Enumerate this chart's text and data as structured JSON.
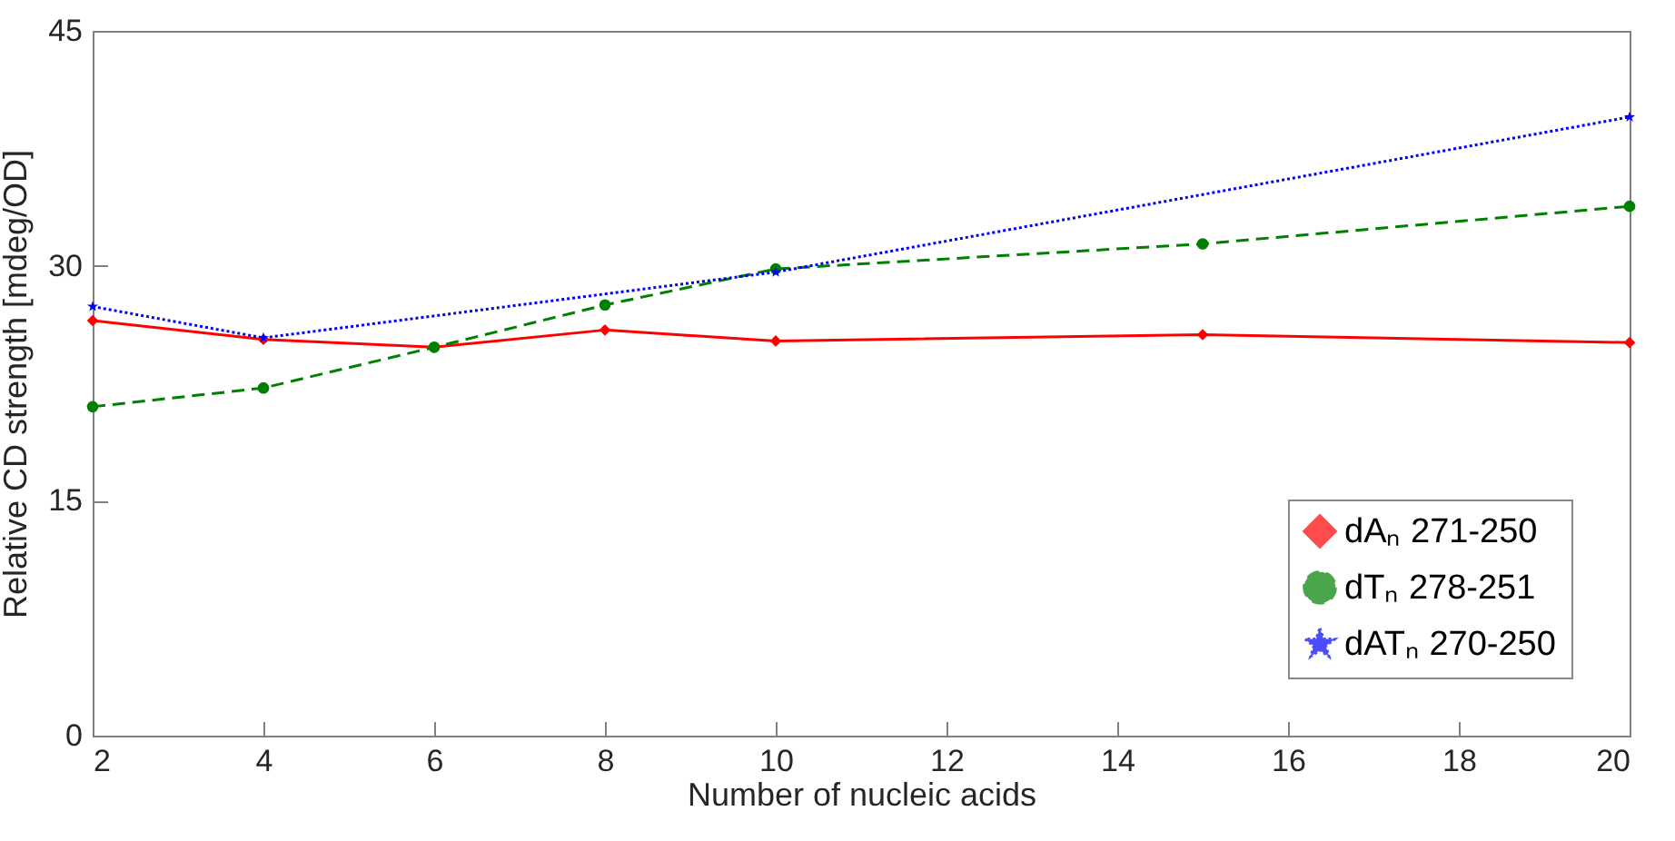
{
  "chart_data": {
    "type": "line",
    "xlabel": "Number of nucleic acids",
    "ylabel": "Relative CD strength [mdeg/OD]",
    "xlim": [
      2,
      20
    ],
    "xticks": [
      2,
      4,
      6,
      8,
      10,
      12,
      14,
      16,
      18,
      20
    ],
    "ylim": [
      0,
      45
    ],
    "yticks": [
      0,
      15,
      30,
      45
    ],
    "grid": false,
    "legend": "bottom right",
    "series": [
      {
        "name": "dAₙ 271-250",
        "color": "#ff0000",
        "marker": "diamond",
        "line_style": "solid",
        "x": [
          2,
          4,
          6,
          8,
          10,
          15,
          20
        ],
        "values": [
          26.5,
          25.3,
          24.8,
          25.9,
          25.2,
          25.6,
          25.1
        ]
      },
      {
        "name": "dTₙ 278-251",
        "color": "#008000",
        "marker": "circle",
        "line_style": "dashed",
        "x": [
          2,
          4,
          6,
          8,
          10,
          15,
          20
        ],
        "values": [
          21.0,
          22.2,
          24.8,
          27.5,
          29.8,
          31.4,
          33.8
        ]
      },
      {
        "name": "dATₙ 270-250",
        "color": "#0000ff",
        "marker": "star",
        "line_style": "dotted",
        "x": [
          2,
          4,
          10,
          20
        ],
        "values": [
          27.4,
          25.4,
          29.6,
          39.5
        ]
      }
    ]
  }
}
